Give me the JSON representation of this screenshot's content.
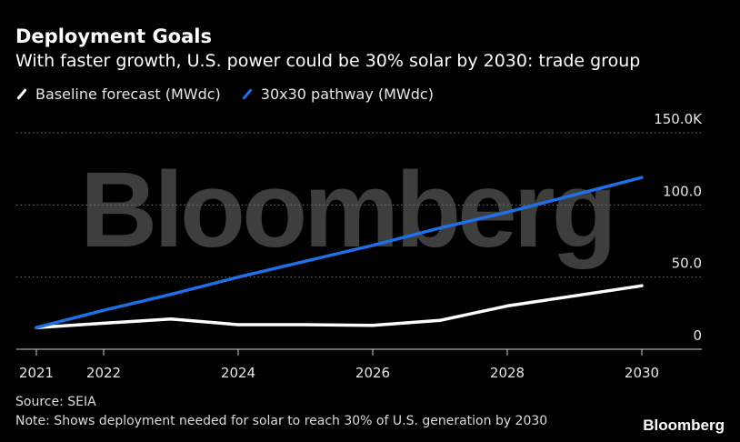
{
  "header": {
    "title": "Deployment Goals",
    "subtitle": "With faster growth, U.S. power could be 30% solar by 2030: trade group"
  },
  "legend": [
    {
      "label": "Baseline forecast (MWdc)",
      "color": "#ffffff"
    },
    {
      "label": "30x30 pathway (MWdc)",
      "color": "#1f6fe8"
    }
  ],
  "footer": {
    "source": "Source: SEIA",
    "note": "Note: Shows deployment needed for solar to reach 30% of U.S. generation by 2030",
    "brand": "Bloomberg"
  },
  "watermark": "Bloomberg",
  "chart_data": {
    "type": "line",
    "title": "Deployment Goals",
    "subtitle": "With faster growth, U.S. power could be 30% solar by 2030: trade group",
    "x": [
      2021,
      2022,
      2023,
      2024,
      2025,
      2026,
      2027,
      2028,
      2029,
      2030
    ],
    "x_ticks": [
      2021,
      2022,
      2024,
      2026,
      2028,
      2030
    ],
    "x_tick_labels": [
      "2021",
      "2022",
      "2024",
      "2026",
      "2028",
      "2030"
    ],
    "ylim": [
      0,
      150
    ],
    "y_ticks": [
      0,
      50,
      100,
      150
    ],
    "y_tick_labels": [
      "0",
      "50.0",
      "100.0",
      "150.0K"
    ],
    "xlabel": "",
    "ylabel": "",
    "grid": true,
    "series": [
      {
        "name": "Baseline forecast (MWdc)",
        "color": "#ffffff",
        "values": [
          15,
          18,
          21,
          17,
          17,
          16.5,
          20,
          30,
          37,
          44
        ]
      },
      {
        "name": "30x30 pathway (MWdc)",
        "color": "#1f6fe8",
        "values": [
          15,
          27,
          38,
          50,
          61,
          72,
          84,
          95,
          107,
          119
        ]
      }
    ]
  }
}
